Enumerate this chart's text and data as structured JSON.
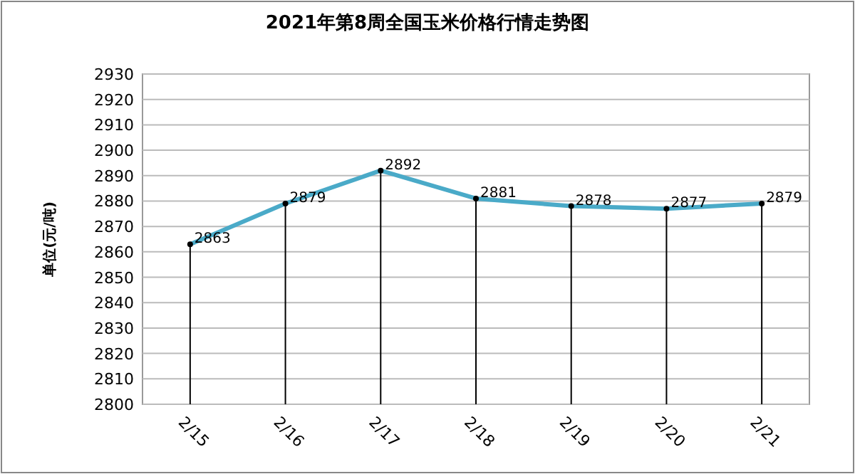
{
  "chart_data": {
    "type": "line",
    "title": "2021年第8周全国玉米价格行情走势图",
    "ylabel": "单位(元/吨)",
    "categories": [
      "2/15",
      "2/16",
      "2/17",
      "2/18",
      "2/19",
      "2/20",
      "2/21"
    ],
    "series": [
      {
        "type": "lollipop",
        "color": "#000000",
        "marker": "circle",
        "values": [
          2863,
          2879,
          2892,
          2881,
          2878,
          2877,
          2879
        ],
        "value_labels": [
          "2863",
          "2879",
          "2892",
          "2881",
          "2878",
          "2877",
          "2879"
        ]
      },
      {
        "color": "#4aaac8",
        "values": [
          2863,
          2879,
          2892,
          2881,
          2878,
          2877,
          2879
        ]
      }
    ],
    "ylim": [
      2800,
      2930
    ],
    "yticks": [
      2800,
      2810,
      2820,
      2830,
      2840,
      2850,
      2860,
      2870,
      2880,
      2890,
      2900,
      2910,
      2920,
      2930
    ],
    "grid": "y"
  }
}
